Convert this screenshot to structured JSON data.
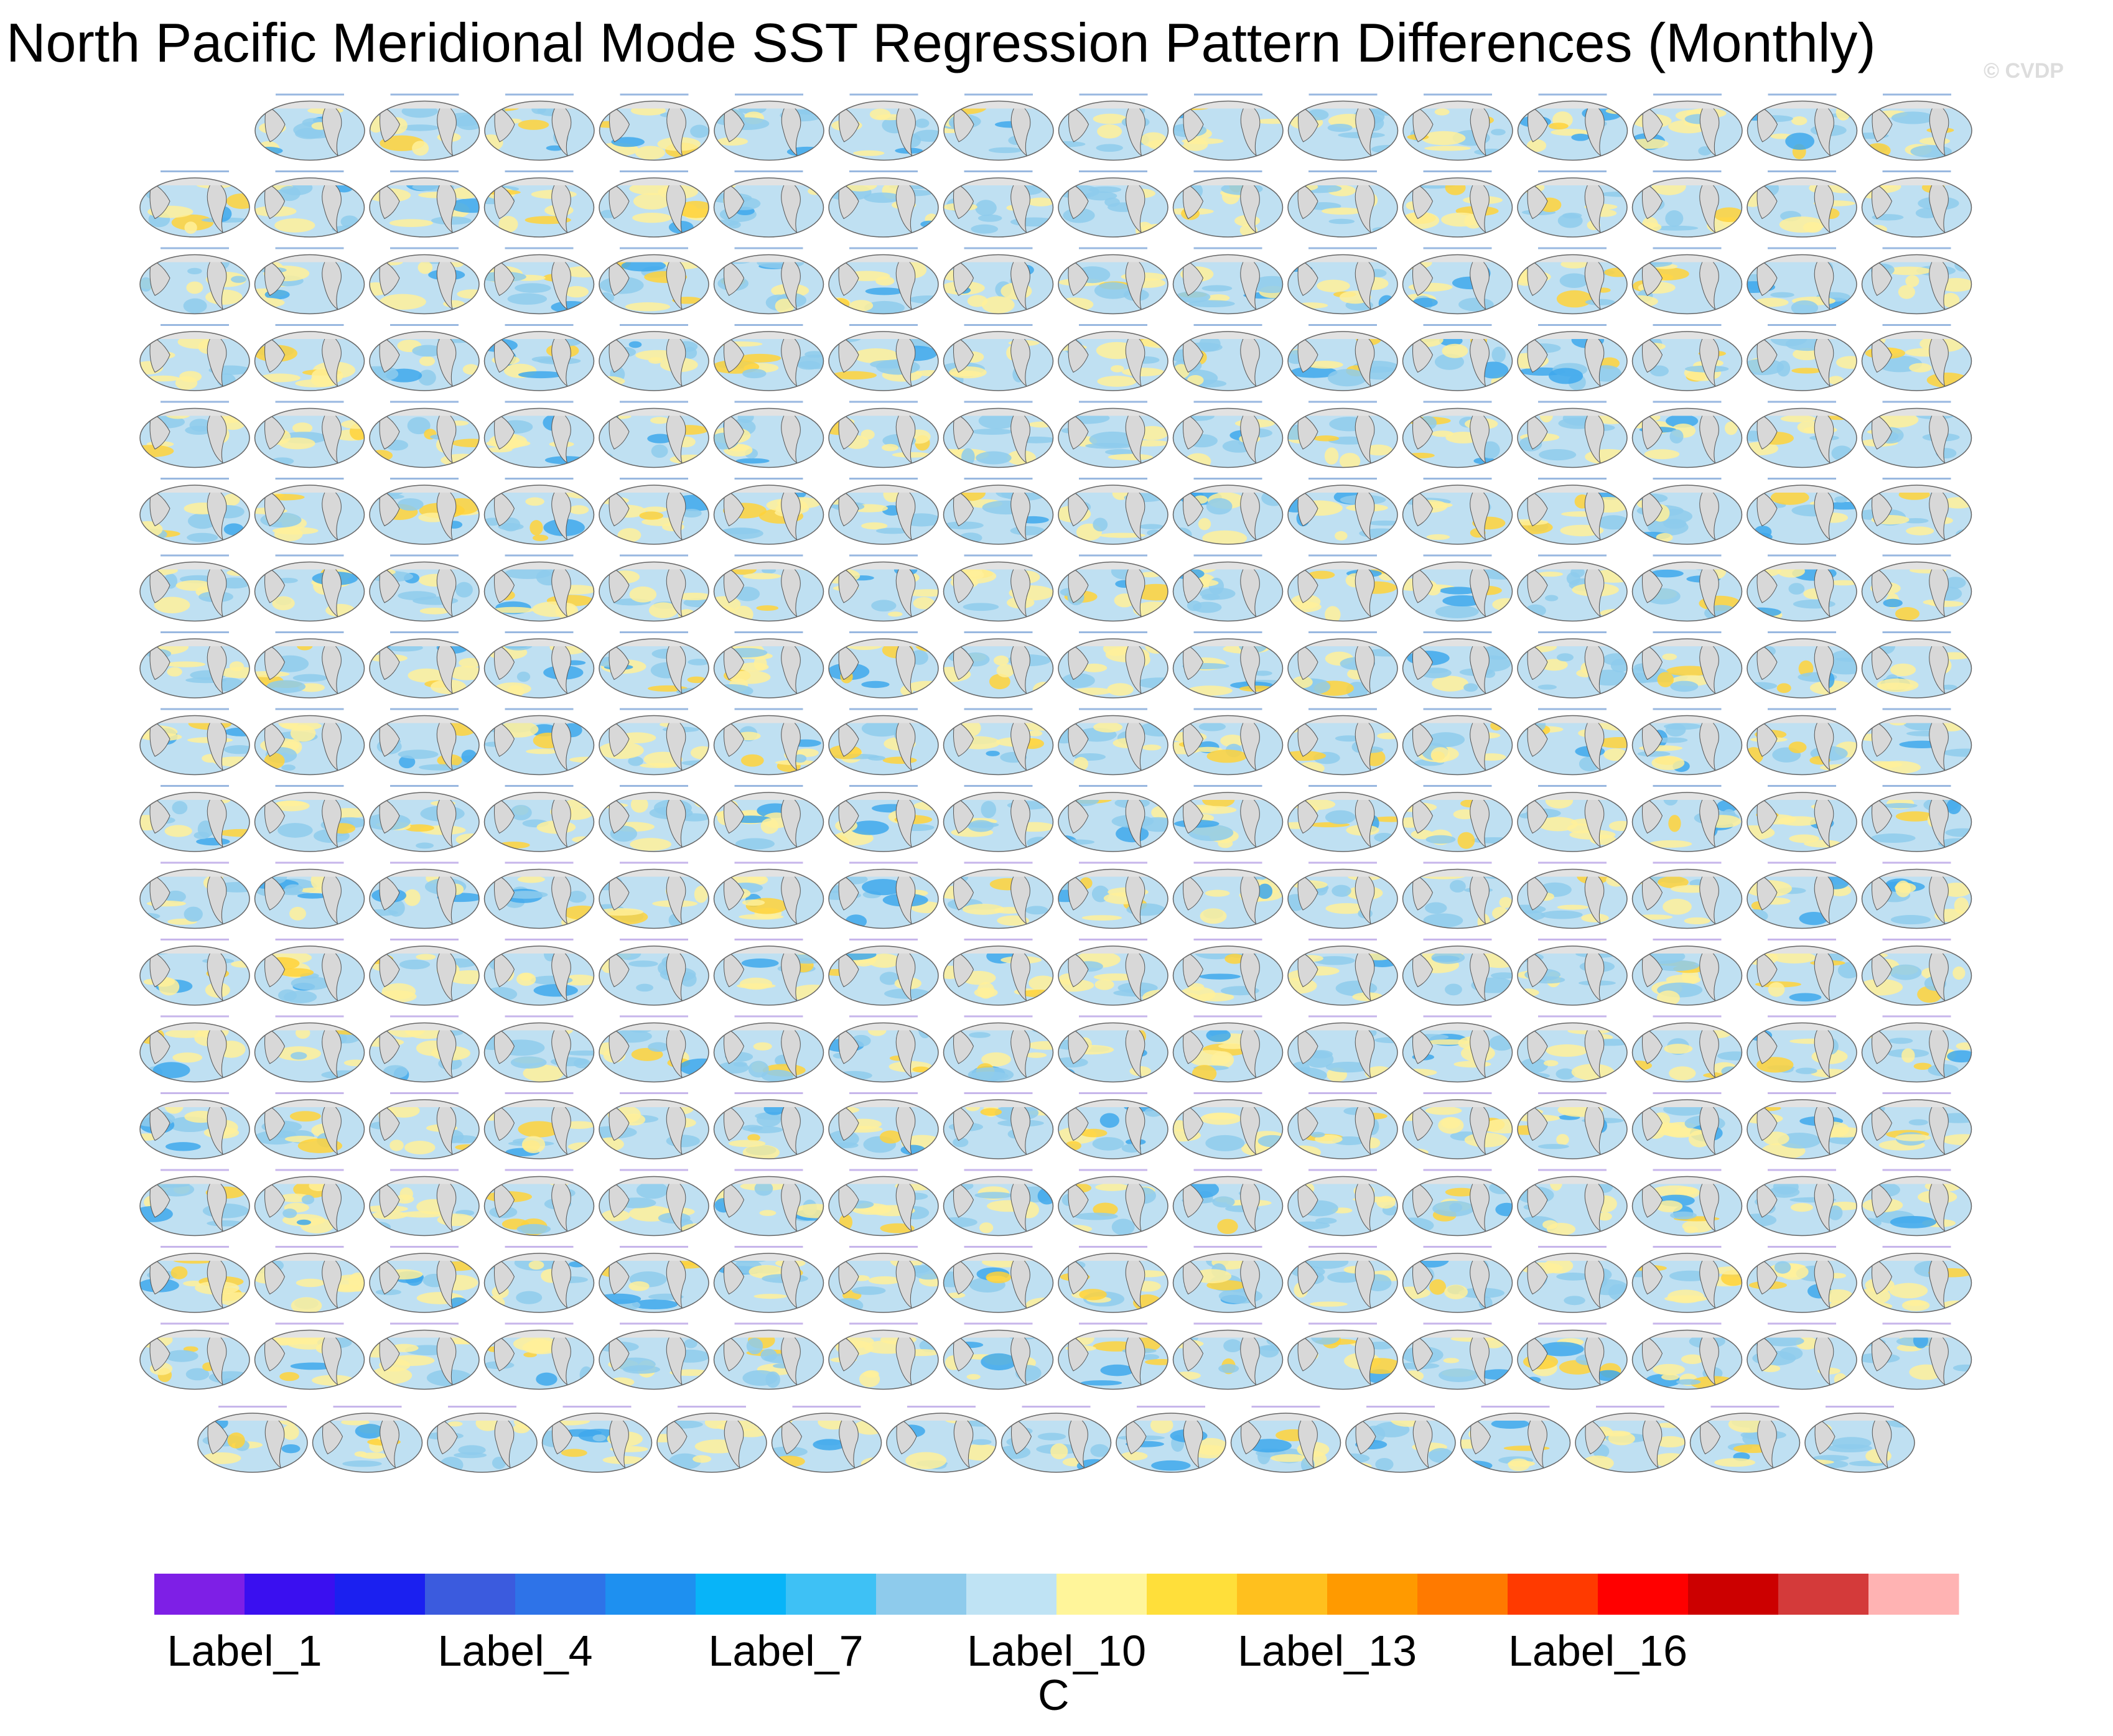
{
  "title": "North Pacific Meridional Mode SST Regression Pattern Differences (Monthly)",
  "watermark": "© CVDP",
  "colorbar": {
    "unit": "C",
    "colors": [
      "#7e1fe6",
      "#3a0ff0",
      "#1b20f0",
      "#3b5bde",
      "#2e73e8",
      "#1e90f0",
      "#08b4f8",
      "#3ec1f5",
      "#8ecbec",
      "#bfe3f4",
      "#fff59a",
      "#ffdf3a",
      "#ffc01e",
      "#ff9a00",
      "#ff7a00",
      "#ff3a00",
      "#ff0000",
      "#cc0000",
      "#d43a3a",
      "#ffb3b3"
    ],
    "tick_labels": [
      "Label_1",
      "Label_4",
      "Label_7",
      "Label_10",
      "Label_13",
      "Label_16"
    ]
  },
  "chart_data": {
    "type": "heatmap",
    "title": "North Pacific Meridional Mode SST Regression Pattern Differences (Monthly)",
    "description_units": "C",
    "panel_grid_rows": [
      15,
      16,
      16,
      16,
      16,
      16,
      16,
      16,
      16,
      16,
      16,
      16,
      16,
      16,
      16,
      16,
      16,
      15
    ],
    "color_scale_labels": [
      "Label_1",
      "Label_4",
      "Label_7",
      "Label_10",
      "Label_13",
      "Label_16"
    ]
  }
}
